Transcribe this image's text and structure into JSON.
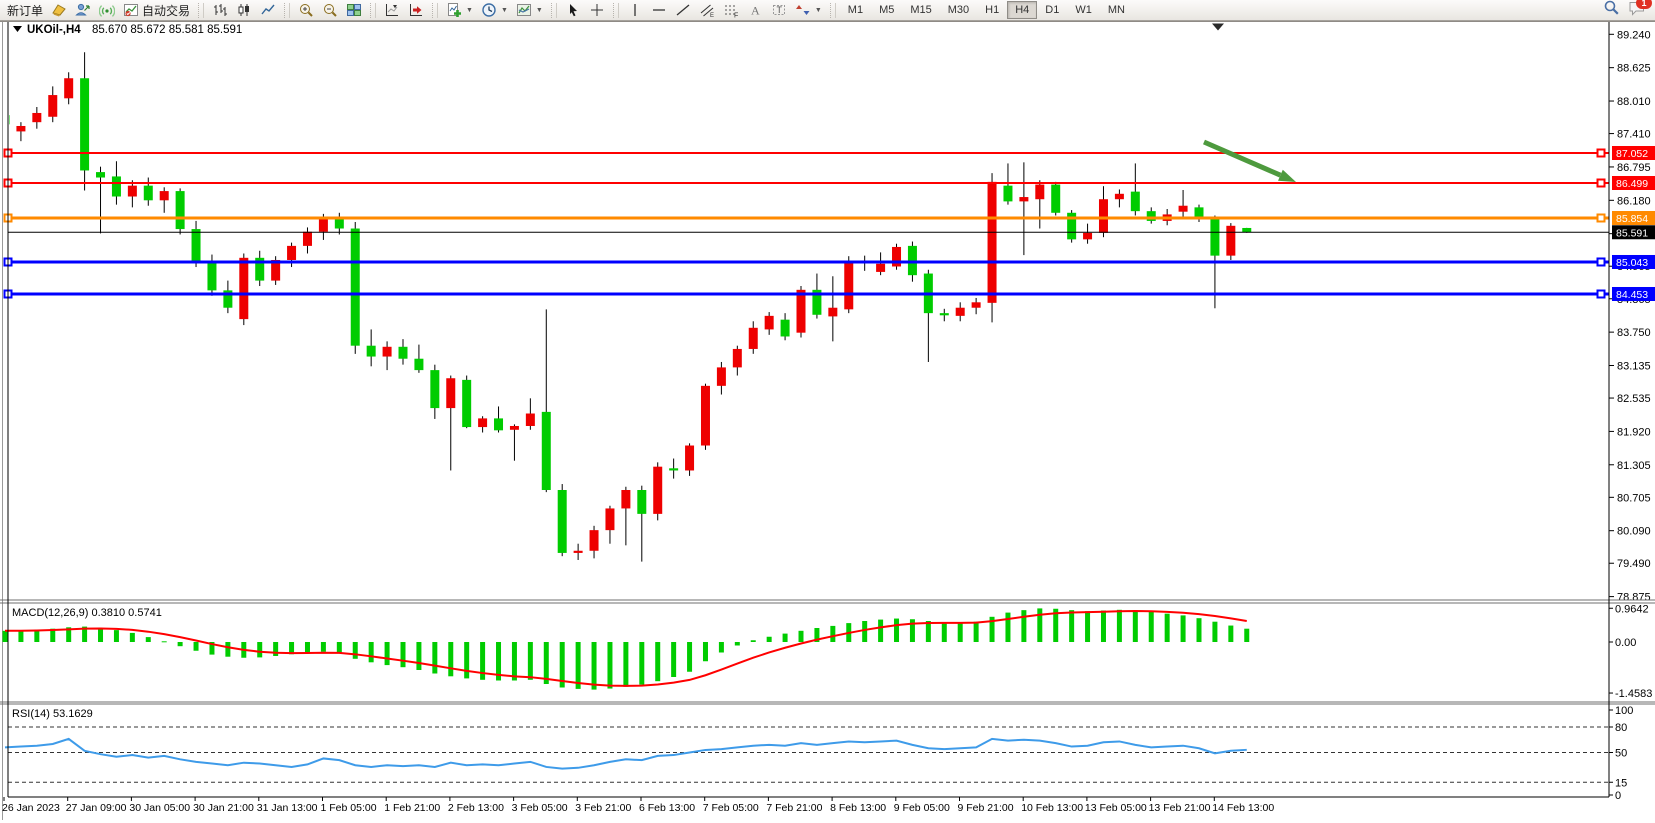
{
  "toolbar": {
    "notification_count": "1",
    "groups": [
      {
        "items": [
          {
            "name": "new-order-button",
            "label": "新订单"
          },
          {
            "name": "quotes-icon-button",
            "icon": "gold"
          },
          {
            "name": "market-watch-icon-button",
            "icon": "profile"
          },
          {
            "name": "signals-icon-button",
            "icon": "signal"
          },
          {
            "name": "auto-trading-button",
            "icon": "autotrade",
            "label": "自动交易"
          }
        ]
      },
      {
        "items": [
          {
            "name": "bar-chart-button",
            "icon": "bars"
          },
          {
            "name": "candlestick-chart-button",
            "icon": "candles"
          },
          {
            "name": "line-chart-button",
            "icon": "linechart"
          }
        ]
      },
      {
        "items": [
          {
            "name": "zoom-in-button",
            "icon": "zoomin"
          },
          {
            "name": "zoom-out-button",
            "icon": "zoomout"
          },
          {
            "name": "tile-windows-button",
            "icon": "tile"
          }
        ]
      },
      {
        "items": [
          {
            "name": "chart-shift-button",
            "icon": "shift"
          },
          {
            "name": "auto-scroll-button",
            "icon": "autoscroll"
          }
        ]
      },
      {
        "items": [
          {
            "name": "indicators-button",
            "icon": "indicators",
            "dropdown": true
          },
          {
            "name": "periods-button",
            "icon": "clock",
            "dropdown": true
          },
          {
            "name": "templates-button",
            "icon": "template",
            "dropdown": true
          }
        ]
      },
      {
        "items": [
          {
            "name": "cursor-button",
            "icon": "cursor"
          },
          {
            "name": "crosshair-button",
            "icon": "crosshair"
          }
        ]
      },
      {
        "items": [
          {
            "name": "vertical-line-button",
            "icon": "vline"
          },
          {
            "name": "horizontal-line-button",
            "icon": "hline"
          },
          {
            "name": "trendline-button",
            "icon": "trend"
          },
          {
            "name": "equidistant-channel-button",
            "icon": "channel"
          },
          {
            "name": "fibonacci-button",
            "icon": "fibo"
          },
          {
            "name": "text-button",
            "icon": "textA"
          },
          {
            "name": "text-label-button",
            "icon": "labelT"
          },
          {
            "name": "arrows-button",
            "icon": "arrows",
            "dropdown": true
          }
        ]
      }
    ],
    "timeframes": [
      "M1",
      "M5",
      "M15",
      "M30",
      "H1",
      "H4",
      "D1",
      "W1",
      "MN"
    ],
    "active_timeframe": "H4"
  },
  "window": {
    "symbol_period": "UKOil-,H4",
    "ohlc_text": "85.670 85.672 85.581 85.591"
  },
  "chart_data": {
    "type": "candlestick",
    "symbol": "UKOil-",
    "timeframe": "H4",
    "last_candle": {
      "open": 85.67,
      "high": 85.672,
      "low": 85.581,
      "close": 85.591
    },
    "colors": {
      "up": "#ee0000",
      "down": "#00cc00",
      "wick": "#000000",
      "line_red": "#ff0000",
      "line_orange": "#ff8a00",
      "line_blue": "#0000ff",
      "current_price": "#000000",
      "macd_hist": "#00cc00",
      "macd_signal": "#ff0000",
      "rsi": "#3e9be9",
      "arrow": "#4e9a3e"
    },
    "price_axis_ticks": [
      "89.240",
      "88.625",
      "88.010",
      "87.410",
      "86.795",
      "86.180",
      "85.565",
      "84.965",
      "84.365",
      "83.750",
      "83.135",
      "82.535",
      "81.920",
      "81.305",
      "80.705",
      "80.090",
      "79.490",
      "78.875"
    ],
    "hlines": [
      {
        "price": 87.052,
        "label": "87.052",
        "color": "#ff0000",
        "width": 2
      },
      {
        "price": 86.499,
        "label": "86.499",
        "color": "#ff0000",
        "width": 2
      },
      {
        "price": 85.854,
        "label": "85.854",
        "color": "#ff8a00",
        "width": 3
      },
      {
        "price": 85.043,
        "label": "85.043",
        "color": "#0000ff",
        "width": 3
      },
      {
        "price": 84.453,
        "label": "84.453",
        "color": "#0000ff",
        "width": 3
      }
    ],
    "current_price": {
      "price": 85.591,
      "label": "85.591"
    },
    "candles": [
      [
        87.75,
        87.9,
        87.52,
        87.58
      ],
      [
        87.45,
        87.62,
        87.27,
        87.55
      ],
      [
        87.62,
        87.9,
        87.5,
        87.79
      ],
      [
        87.72,
        88.28,
        87.62,
        88.12
      ],
      [
        88.06,
        88.54,
        87.95,
        88.43
      ],
      [
        88.43,
        88.91,
        86.36,
        86.73
      ],
      [
        86.7,
        86.8,
        85.57,
        86.6
      ],
      [
        86.62,
        86.9,
        86.1,
        86.25
      ],
      [
        86.25,
        86.55,
        86.05,
        86.45
      ],
      [
        86.45,
        86.6,
        86.08,
        86.18
      ],
      [
        86.18,
        86.42,
        85.95,
        86.35
      ],
      [
        86.35,
        86.4,
        85.55,
        85.65
      ],
      [
        85.65,
        85.8,
        84.95,
        85.05
      ],
      [
        85.05,
        85.18,
        84.42,
        84.52
      ],
      [
        84.52,
        84.7,
        84.1,
        84.2
      ],
      [
        83.99,
        85.2,
        83.88,
        85.12
      ],
      [
        85.12,
        85.25,
        84.6,
        84.7
      ],
      [
        84.7,
        85.15,
        84.62,
        85.08
      ],
      [
        85.08,
        85.4,
        84.95,
        85.34
      ],
      [
        85.34,
        85.68,
        85.2,
        85.6
      ],
      [
        85.6,
        85.93,
        85.45,
        85.86
      ],
      [
        85.86,
        85.95,
        85.55,
        85.66
      ],
      [
        85.66,
        85.78,
        83.35,
        83.5
      ],
      [
        83.5,
        83.8,
        83.12,
        83.3
      ],
      [
        83.3,
        83.58,
        83.05,
        83.48
      ],
      [
        83.48,
        83.62,
        83.15,
        83.26
      ],
      [
        83.26,
        83.52,
        83.0,
        83.05
      ],
      [
        83.05,
        83.15,
        82.15,
        82.35
      ],
      [
        82.35,
        82.95,
        81.2,
        82.9
      ],
      [
        82.87,
        82.95,
        81.98,
        82.0
      ],
      [
        82.0,
        82.2,
        81.9,
        82.16
      ],
      [
        82.16,
        82.38,
        81.9,
        81.94
      ],
      [
        81.95,
        82.05,
        81.38,
        82.02
      ],
      [
        82.02,
        82.53,
        81.95,
        82.25
      ],
      [
        82.28,
        84.17,
        80.8,
        80.84
      ],
      [
        80.84,
        80.95,
        79.62,
        79.68
      ],
      [
        79.68,
        79.85,
        79.55,
        79.72
      ],
      [
        79.72,
        80.18,
        79.58,
        80.1
      ],
      [
        80.1,
        80.55,
        79.85,
        80.5
      ],
      [
        80.5,
        80.9,
        79.82,
        80.84
      ],
      [
        80.84,
        80.92,
        79.52,
        80.4
      ],
      [
        80.4,
        81.35,
        80.28,
        81.27
      ],
      [
        81.24,
        81.42,
        81.05,
        81.2
      ],
      [
        81.2,
        81.7,
        81.1,
        81.66
      ],
      [
        81.66,
        82.8,
        81.58,
        82.76
      ],
      [
        82.76,
        83.2,
        82.6,
        83.1
      ],
      [
        83.1,
        83.5,
        82.95,
        83.44
      ],
      [
        83.44,
        83.95,
        83.35,
        83.83
      ],
      [
        83.8,
        84.12,
        83.7,
        84.05
      ],
      [
        83.98,
        84.1,
        83.6,
        83.67
      ],
      [
        83.74,
        84.6,
        83.65,
        84.53
      ],
      [
        84.53,
        84.83,
        84.0,
        84.07
      ],
      [
        84.04,
        84.78,
        83.58,
        84.2
      ],
      [
        84.17,
        85.15,
        84.1,
        85.07
      ],
      [
        85.05,
        85.16,
        84.88,
        85.02
      ],
      [
        84.86,
        85.22,
        84.8,
        85.01
      ],
      [
        84.96,
        85.38,
        84.9,
        85.32
      ],
      [
        85.34,
        85.42,
        84.68,
        84.8
      ],
      [
        84.83,
        84.9,
        83.2,
        84.1
      ],
      [
        84.1,
        84.18,
        83.95,
        84.06
      ],
      [
        84.05,
        84.3,
        83.95,
        84.2
      ],
      [
        84.2,
        84.38,
        84.08,
        84.3
      ],
      [
        84.29,
        86.68,
        83.93,
        86.52
      ],
      [
        86.45,
        86.86,
        86.1,
        86.16
      ],
      [
        86.16,
        86.88,
        85.17,
        86.24
      ],
      [
        86.2,
        86.55,
        85.66,
        86.47
      ],
      [
        86.47,
        86.52,
        85.9,
        85.95
      ],
      [
        85.95,
        86.0,
        85.4,
        85.46
      ],
      [
        85.46,
        85.75,
        85.38,
        85.58
      ],
      [
        85.58,
        86.44,
        85.5,
        86.2
      ],
      [
        86.2,
        86.38,
        86.05,
        86.3
      ],
      [
        86.34,
        86.86,
        85.9,
        85.98
      ],
      [
        85.98,
        86.05,
        85.75,
        85.8
      ],
      [
        85.8,
        86.02,
        85.72,
        85.92
      ],
      [
        85.97,
        86.37,
        85.88,
        86.08
      ],
      [
        86.05,
        86.1,
        85.78,
        85.86
      ],
      [
        85.86,
        85.9,
        84.19,
        85.16
      ],
      [
        85.16,
        85.76,
        85.08,
        85.71
      ],
      [
        85.67,
        85.672,
        85.581,
        85.591
      ]
    ],
    "time_labels": [
      "26 Jan 2023",
      "27 Jan 09:00",
      "30 Jan 05:00",
      "30 Jan 21:00",
      "31 Jan 13:00",
      "1 Feb 05:00",
      "1 Feb 21:00",
      "2 Feb 13:00",
      "3 Feb 05:00",
      "3 Feb 21:00",
      "6 Feb 13:00",
      "7 Feb 05:00",
      "7 Feb 21:00",
      "8 Feb 13:00",
      "9 Feb 05:00",
      "9 Feb 21:00",
      "10 Feb 13:00",
      "13 Feb 05:00",
      "13 Feb 21:00",
      "14 Feb 13:00"
    ],
    "macd": {
      "label": "MACD(12,26,9)",
      "values_text": "0.3810 0.5741",
      "main": 0.381,
      "signal": 0.5741,
      "axis_ticks": [
        "0.9642",
        "0.00",
        "-1.4583"
      ],
      "axis_values": [
        0.9642,
        0,
        -1.4583
      ],
      "histogram": [
        0.32,
        0.33,
        0.35,
        0.38,
        0.42,
        0.44,
        0.4,
        0.34,
        0.26,
        0.14,
        0.02,
        -0.12,
        -0.25,
        -0.36,
        -0.42,
        -0.45,
        -0.44,
        -0.4,
        -0.35,
        -0.3,
        -0.28,
        -0.32,
        -0.48,
        -0.58,
        -0.66,
        -0.72,
        -0.8,
        -0.9,
        -0.98,
        -1.04,
        -1.08,
        -1.1,
        -1.1,
        -1.08,
        -1.2,
        -1.3,
        -1.34,
        -1.36,
        -1.33,
        -1.28,
        -1.22,
        -1.12,
        -1.0,
        -0.85,
        -0.55,
        -0.3,
        -0.1,
        0.05,
        0.15,
        0.24,
        0.32,
        0.4,
        0.46,
        0.54,
        0.6,
        0.64,
        0.67,
        0.65,
        0.6,
        0.56,
        0.54,
        0.58,
        0.72,
        0.84,
        0.91,
        0.96,
        0.95,
        0.91,
        0.88,
        0.9,
        0.92,
        0.9,
        0.86,
        0.81,
        0.76,
        0.68,
        0.58,
        0.47,
        0.38
      ]
    },
    "rsi": {
      "label": "RSI(14)",
      "value_text": "53.1629",
      "value": 53.1629,
      "levels": [
        80,
        50,
        15
      ],
      "axis_ticks": [
        "100",
        "80",
        "50",
        "15",
        "0"
      ],
      "values": [
        56,
        57,
        58,
        60,
        66,
        52,
        48,
        45,
        47,
        44,
        46,
        42,
        39,
        37,
        35,
        38,
        37,
        35,
        33,
        36,
        43,
        41,
        35,
        33,
        35,
        34,
        35,
        33,
        38,
        35,
        36,
        35,
        37,
        39,
        33,
        31,
        32,
        35,
        39,
        42,
        41,
        46,
        47,
        50,
        53,
        54,
        56,
        58,
        59,
        58,
        61,
        59,
        61,
        63,
        62,
        63,
        64,
        59,
        55,
        54,
        55,
        56,
        66,
        64,
        65,
        64,
        61,
        57,
        58,
        62,
        63,
        59,
        56,
        57,
        58,
        55,
        49,
        52,
        53.16
      ]
    },
    "annotation_arrow": {
      "from": [
        1204,
        142
      ],
      "to": [
        1296,
        182
      ]
    }
  }
}
